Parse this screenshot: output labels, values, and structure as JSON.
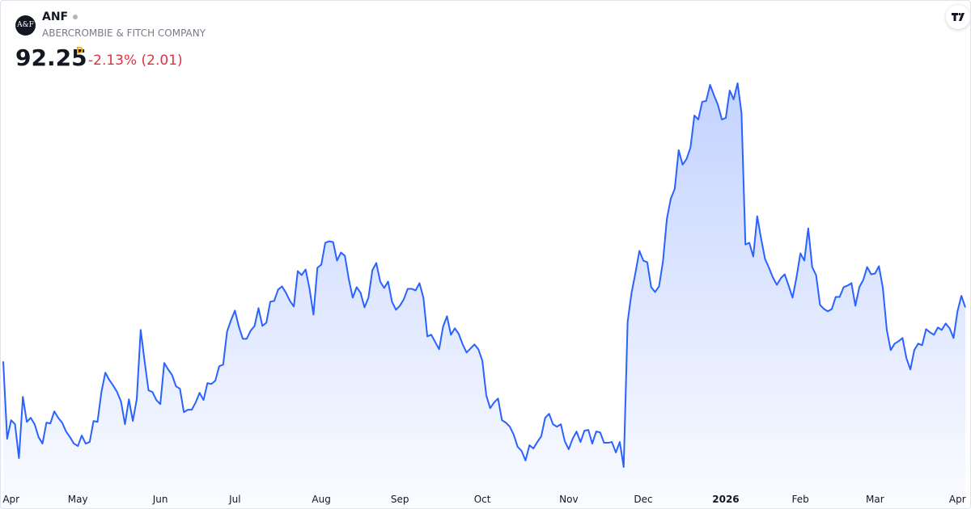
{
  "header": {
    "logo": "A&F",
    "symbol": "ANF",
    "company": "ABERCROMBIE & FITCH COMPANY",
    "last_price": 92.25,
    "interval": "D",
    "change": "-2.13% (2.01)"
  },
  "chart_data": {
    "type": "area",
    "color": "#2962ff",
    "values": [
      82.87,
      69.43,
      72.65,
      71.95,
      66.07,
      76.71,
      72.37,
      73.07,
      71.95,
      69.71,
      68.59,
      72.23,
      72.09,
      74.19,
      73.07,
      72.23,
      70.69,
      69.71,
      68.59,
      68.17,
      69.99,
      68.59,
      68.87,
      72.51,
      72.37,
      77.55,
      80.91,
      79.65,
      78.67,
      77.55,
      75.87,
      71.95,
      76.29,
      72.51,
      76.29,
      88.33,
      82.87,
      77.83,
      77.55,
      76.15,
      75.45,
      82.59,
      81.47,
      80.49,
      78.53,
      78.11,
      74.05,
      74.47,
      74.47,
      75.73,
      77.41,
      76.15,
      79.09,
      78.95,
      79.51,
      82.03,
      82.31,
      88.05,
      90.01,
      91.69,
      88.89,
      86.79,
      86.79,
      88.19,
      89.03,
      92.11,
      89.03,
      89.59,
      93.23,
      93.37,
      95.33,
      95.89,
      94.77,
      93.37,
      92.39,
      98.55,
      97.85,
      98.83,
      95.47,
      90.99,
      99.11,
      99.67,
      103.45,
      103.73,
      103.59,
      100.37,
      101.77,
      101.21,
      97.15,
      93.93,
      95.75,
      94.77,
      92.25,
      93.93,
      98.69,
      99.95,
      96.73,
      95.61,
      96.73,
      93.23,
      91.83,
      92.53,
      93.65,
      95.47,
      95.47,
      95.19,
      96.45,
      93.93,
      87.21,
      87.49,
      86.23,
      84.97,
      88.89,
      90.71,
      87.49,
      88.61,
      87.63,
      85.81,
      84.41,
      85.11,
      85.81,
      84.97,
      83.01,
      76.99,
      74.75,
      75.73,
      76.43,
      72.65,
      72.23,
      71.53,
      70.13,
      68.03,
      67.33,
      65.65,
      68.31,
      67.75,
      68.87,
      69.85,
      73.07,
      73.77,
      71.95,
      71.53,
      71.95,
      69.01,
      67.61,
      69.43,
      70.69,
      68.87,
      70.83,
      70.97,
      68.59,
      70.69,
      70.55,
      68.73,
      68.73,
      68.87,
      67.05,
      68.87,
      64.53,
      89.73,
      94.77,
      98.27,
      102.05,
      100.37,
      100.09,
      95.75,
      94.91,
      95.89,
      100.23,
      107.65,
      111.15,
      112.83,
      119.55,
      117.03,
      118.01,
      119.97,
      125.57,
      124.87,
      127.95,
      128.09,
      130.89,
      129.07,
      127.39,
      124.87,
      125.15,
      129.91,
      128.37,
      131.17,
      125.99,
      103.17,
      103.45,
      101.07,
      108.07,
      104.15,
      100.65,
      99.11,
      97.43,
      96.17,
      97.29,
      97.99,
      96.03,
      93.93,
      97.43,
      101.63,
      100.37,
      105.97,
      99.25,
      97.85,
      92.67,
      91.97,
      91.55,
      91.97,
      94.07,
      94.07,
      95.75,
      96.03,
      96.45,
      92.53,
      95.75,
      97.01,
      99.25,
      97.99,
      98.13,
      99.39,
      95.61,
      88.33,
      84.83,
      85.95,
      86.37,
      86.93,
      83.43,
      81.47,
      84.83,
      85.95,
      85.67,
      88.47,
      87.91,
      87.49,
      88.75,
      88.33,
      89.45,
      88.61,
      86.93,
      91.55,
      94.26,
      92.25
    ],
    "xticks": [
      {
        "value": 2,
        "label": "Apr"
      },
      {
        "value": 19,
        "label": "May"
      },
      {
        "value": 40,
        "label": "Jun"
      },
      {
        "value": 59,
        "label": "Jul"
      },
      {
        "value": 81,
        "label": "Aug"
      },
      {
        "value": 101,
        "label": "Sep"
      },
      {
        "value": 122,
        "label": "Oct"
      },
      {
        "value": 144,
        "label": "Nov"
      },
      {
        "value": 163,
        "label": "Dec"
      },
      {
        "value": 184,
        "label": "2026",
        "emphasis": true
      },
      {
        "value": 203,
        "label": "Feb"
      },
      {
        "value": 222,
        "label": "Mar"
      },
      {
        "value": 243,
        "label": "Apr"
      }
    ]
  }
}
